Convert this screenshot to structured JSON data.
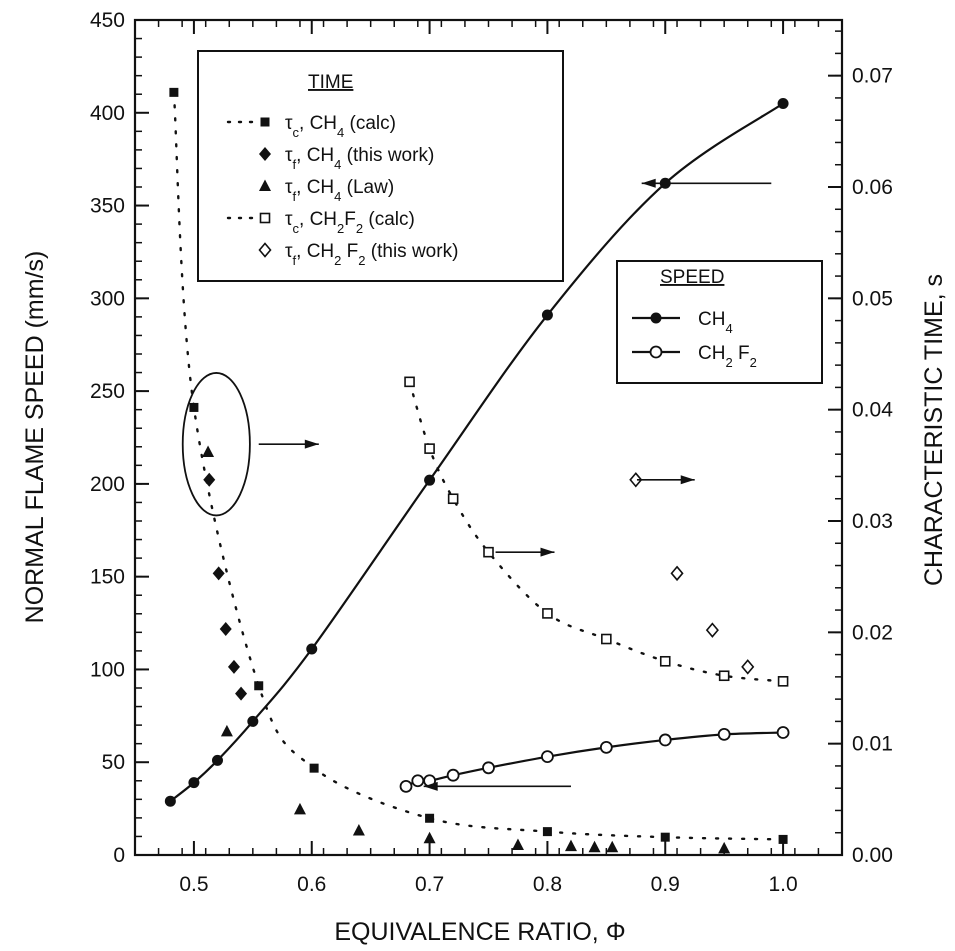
{
  "chart_data": {
    "type": "scatter",
    "xlabel": "EQUIVALENCE RATIO, Φ",
    "ylabel_left": "NORMAL FLAME SPEED (mm/s)",
    "ylabel_right": "CHARACTERISTIC TIME, s",
    "xlim": [
      0.45,
      1.05
    ],
    "ylim_left": [
      0,
      450
    ],
    "ylim_right": [
      0,
      0.075
    ],
    "x_ticks": [
      "0.5",
      "0.6",
      "0.7",
      "0.8",
      "0.9",
      "1.0"
    ],
    "y_left_ticks": [
      "0",
      "50",
      "100",
      "150",
      "200",
      "250",
      "300",
      "350",
      "400",
      "450"
    ],
    "y_right_ticks": [
      "0.00",
      "0.01",
      "0.02",
      "0.03",
      "0.04",
      "0.05",
      "0.06",
      "0.07"
    ],
    "legend_time": {
      "heading": "TIME",
      "entries": [
        {
          "symbol": "τ",
          "sub": "c",
          "text": ", CH",
          "sub2": "4",
          "text2": " (calc)"
        },
        {
          "symbol": "τ",
          "sub": "f",
          "text": ", CH",
          "sub2": "4",
          "text2": " (this work)"
        },
        {
          "symbol": "τ",
          "sub": "f",
          "text": ", CH",
          "sub2": "4",
          "text2": " (Law)"
        },
        {
          "symbol": "τ",
          "sub": "c",
          "text": ", CH",
          "sub2": "2",
          "text2": "F",
          "sub3": "2",
          "text3": " (calc)"
        },
        {
          "symbol": "τ",
          "sub": "f",
          "text": ", CH",
          "sub2": "2",
          "text2": " F",
          "sub3": "2",
          "text3": "  (this work)"
        }
      ]
    },
    "legend_speed": {
      "heading": "SPEED",
      "entries": [
        {
          "text": "CH",
          "sub": "4"
        },
        {
          "text": "CH",
          "sub": "2",
          "text2": " F",
          "sub2": "2"
        }
      ]
    },
    "series": [
      {
        "axis": "left",
        "marker": "filled-circle",
        "line": "solid",
        "x": [
          0.48,
          0.5,
          0.52,
          0.55,
          0.6,
          0.7,
          0.8,
          0.9,
          1.0
        ],
        "y": [
          29,
          39,
          51,
          72,
          111,
          202,
          291,
          362,
          405
        ]
      },
      {
        "axis": "left",
        "marker": "open-circle",
        "line": "solid",
        "x": [
          0.68,
          0.69,
          0.7,
          0.72,
          0.75,
          0.8,
          0.85,
          0.9,
          0.95,
          1.0
        ],
        "y": [
          37,
          40,
          40,
          43,
          47,
          53,
          58,
          62,
          65,
          66
        ]
      },
      {
        "axis": "right",
        "marker": "filled-square",
        "line": "dotted",
        "x": [
          0.483,
          0.5,
          0.555,
          0.602,
          0.7,
          0.8,
          0.9,
          1.0
        ],
        "y": [
          0.0685,
          0.0402,
          0.0152,
          0.0078,
          0.0033,
          0.0021,
          0.0016,
          0.0014
        ]
      },
      {
        "axis": "right",
        "marker": "filled-diamond",
        "line": "none",
        "x": [
          0.513,
          0.521,
          0.527,
          0.534,
          0.54
        ],
        "y": [
          0.0337,
          0.0253,
          0.0203,
          0.0169,
          0.0145
        ]
      },
      {
        "axis": "right",
        "marker": "filled-triangle",
        "line": "none",
        "x": [
          0.512,
          0.528,
          0.59,
          0.64,
          0.7,
          0.775,
          0.82,
          0.84,
          0.855,
          0.95
        ],
        "y": [
          0.0362,
          0.0111,
          0.0041,
          0.0022,
          0.0015,
          0.0009,
          0.0008,
          0.0007,
          0.0007,
          0.0006
        ]
      },
      {
        "axis": "right",
        "marker": "open-square",
        "line": "dotted",
        "x": [
          0.683,
          0.7,
          0.72,
          0.75,
          0.8,
          0.85,
          0.9,
          0.95,
          1.0
        ],
        "y": [
          0.0425,
          0.0365,
          0.032,
          0.0272,
          0.0217,
          0.0194,
          0.0174,
          0.0161,
          0.0156
        ]
      },
      {
        "axis": "right",
        "marker": "open-diamond",
        "line": "none",
        "x": [
          0.875,
          0.91,
          0.94,
          0.97
        ],
        "y": [
          0.0337,
          0.0253,
          0.0202,
          0.0169
        ]
      }
    ],
    "annotations": [
      {
        "kind": "arrow",
        "dir": "left",
        "text": "",
        "from": [
          0.99,
          362
        ],
        "to": [
          0.88,
          362
        ],
        "axis": "left"
      },
      {
        "kind": "arrow",
        "dir": "left",
        "text": "",
        "from": [
          0.82,
          37
        ],
        "to": [
          0.695,
          37
        ],
        "axis": "left"
      },
      {
        "kind": "arrow",
        "dir": "right",
        "text": "",
        "from": [
          0.555,
          0.0369
        ],
        "to": [
          0.606,
          0.0369
        ],
        "axis": "right"
      },
      {
        "kind": "arrow",
        "dir": "right",
        "text": "",
        "from": [
          0.756,
          0.0272
        ],
        "to": [
          0.806,
          0.0272
        ],
        "axis": "right"
      },
      {
        "kind": "arrow",
        "dir": "right",
        "text": "",
        "from": [
          0.876,
          0.0337
        ],
        "to": [
          0.925,
          0.0337
        ],
        "axis": "right"
      },
      {
        "kind": "ellipse",
        "cx": 0.519,
        "cy": 0.0369,
        "rx": 0.0285,
        "ry": 0.0064
      }
    ]
  }
}
